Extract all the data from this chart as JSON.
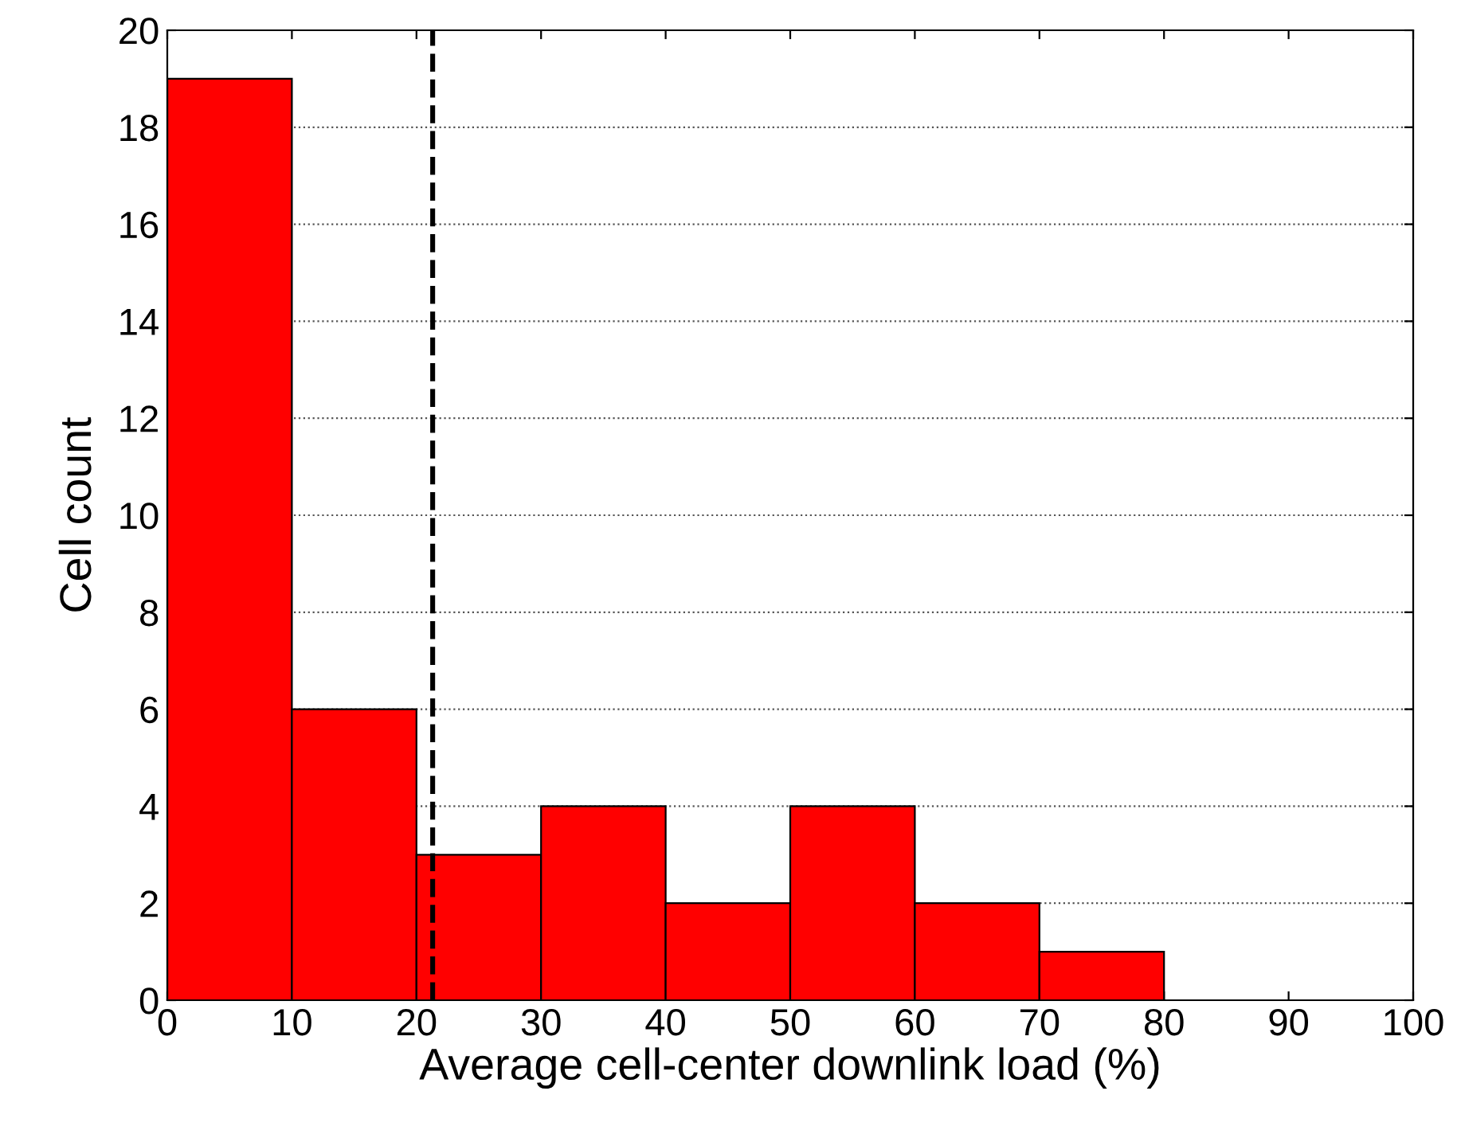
{
  "chart_data": {
    "type": "histogram",
    "xlabel": "Average cell-center downlink load (%)",
    "ylabel": "Cell count",
    "bins": [
      0,
      10,
      20,
      30,
      40,
      50,
      60,
      70,
      80
    ],
    "values": [
      19,
      6,
      3,
      4,
      2,
      4,
      2,
      1
    ],
    "color": "#ff0000",
    "xlim": [
      0,
      100
    ],
    "xticks": [
      0,
      10,
      20,
      30,
      40,
      50,
      60,
      70,
      80,
      90,
      100
    ],
    "ylim": [
      0,
      20
    ],
    "yticks": [
      0,
      2,
      4,
      6,
      8,
      10,
      12,
      14,
      16,
      18,
      20
    ],
    "grid": "y",
    "ref_lines": [
      {
        "axis": "x",
        "value": 21.3,
        "color": "#000000",
        "line_style": "dashed"
      }
    ]
  }
}
